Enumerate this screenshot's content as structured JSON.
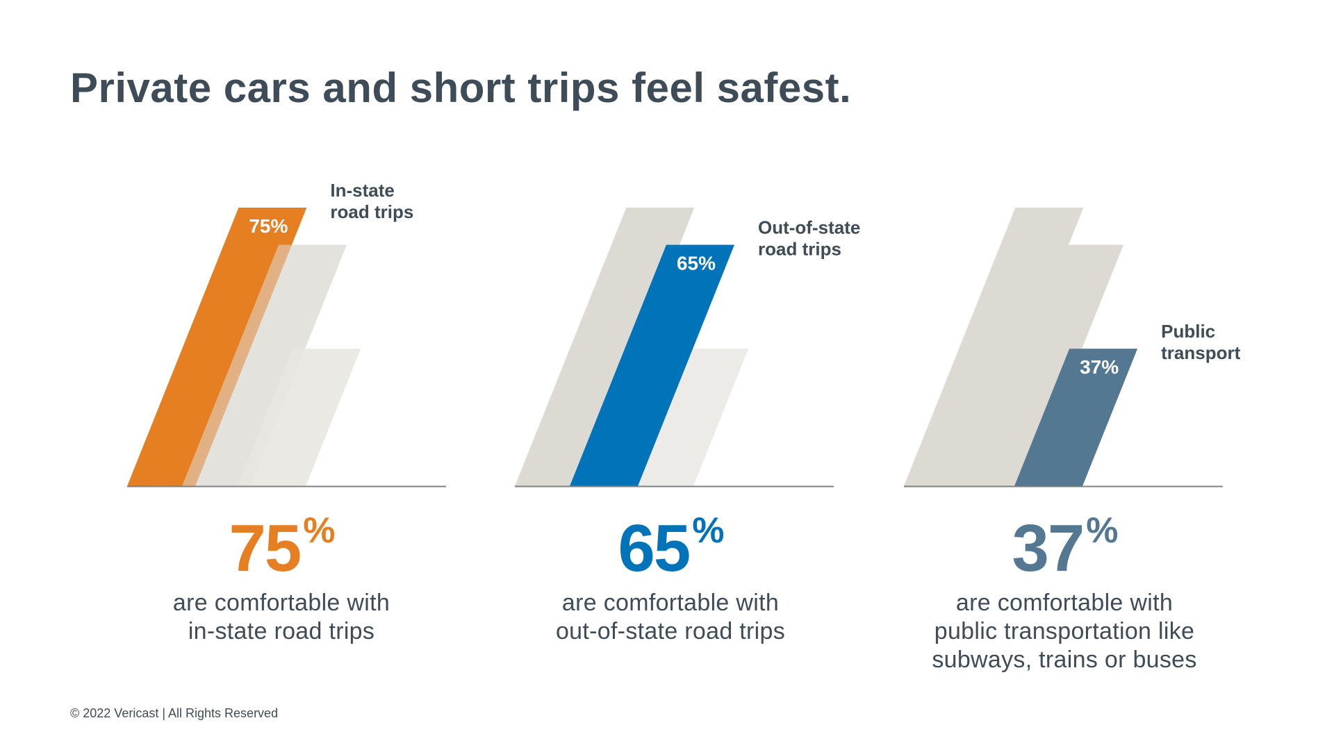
{
  "title": "Private cars and short trips feel safest.",
  "footer": "© 2022 Vericast | All Rights Reserved",
  "colors": {
    "ghost_dark": "#dcdad3",
    "ghost_light": "#e9e8e3",
    "baseline": "#808080",
    "text": "#3e4c57"
  },
  "chart_data": [
    {
      "type": "bar",
      "category_label": [
        "In-state",
        "road trips"
      ],
      "value": 75,
      "value_label": "75%",
      "color": "#e67e22",
      "big_number": "75",
      "percent_sign": "%",
      "caption": [
        "are comfortable with",
        "in-state road trips"
      ]
    },
    {
      "type": "bar",
      "category_label": [
        "Out-of-state",
        "road trips"
      ],
      "value": 65,
      "value_label": "65%",
      "color": "#0073b9",
      "big_number": "65",
      "percent_sign": "%",
      "caption": [
        "are comfortable with",
        "out-of-state road trips"
      ]
    },
    {
      "type": "bar",
      "category_label": [
        "Public",
        "transport"
      ],
      "value": 37,
      "value_label": "37%",
      "color": "#547891",
      "big_number": "37",
      "percent_sign": "%",
      "caption": [
        "are comfortable with",
        "public transportation like",
        "subways, trains or buses"
      ]
    }
  ]
}
